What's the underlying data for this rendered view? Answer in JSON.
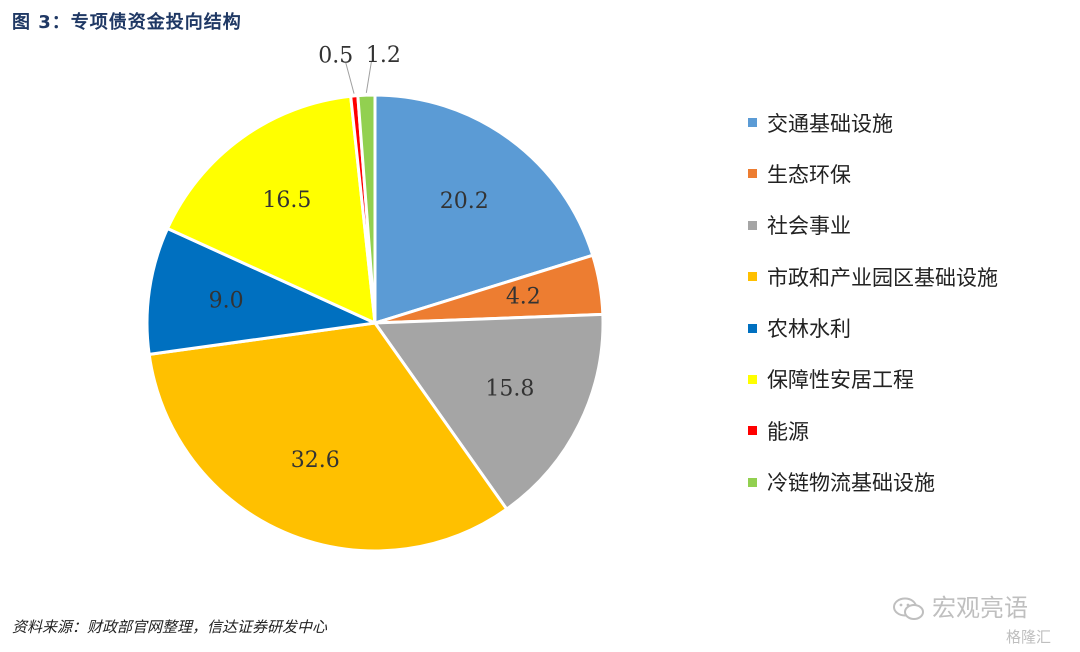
{
  "figure_title": "图 3：专项债资金投向结构",
  "source_note": "资料来源：财政部官网整理，信达证券研发中心",
  "watermark": {
    "brand": "宏观亮语",
    "platform": "格隆汇"
  },
  "chart_data": {
    "type": "pie",
    "title": "",
    "categories": [
      "交通基础设施",
      "生态环保",
      "社会事业",
      "市政和产业园区基础设施",
      "农林水利",
      "保障性安居工程",
      "能源",
      "冷链物流基础设施"
    ],
    "values": [
      20.2,
      4.2,
      15.8,
      32.6,
      9.0,
      16.5,
      0.5,
      1.2
    ],
    "value_labels": [
      "20.2",
      "4.2",
      "15.8",
      "32.6",
      "9.0",
      "16.5",
      "0.5",
      "1.2"
    ],
    "colors": [
      "#5b9bd5",
      "#ed7d31",
      "#a5a5a5",
      "#ffc000",
      "#0070c0",
      "#ffff00",
      "#ff0000",
      "#92d050"
    ],
    "start_angle": "12 o'clock",
    "direction": "clockwise",
    "legend_position": "right"
  }
}
